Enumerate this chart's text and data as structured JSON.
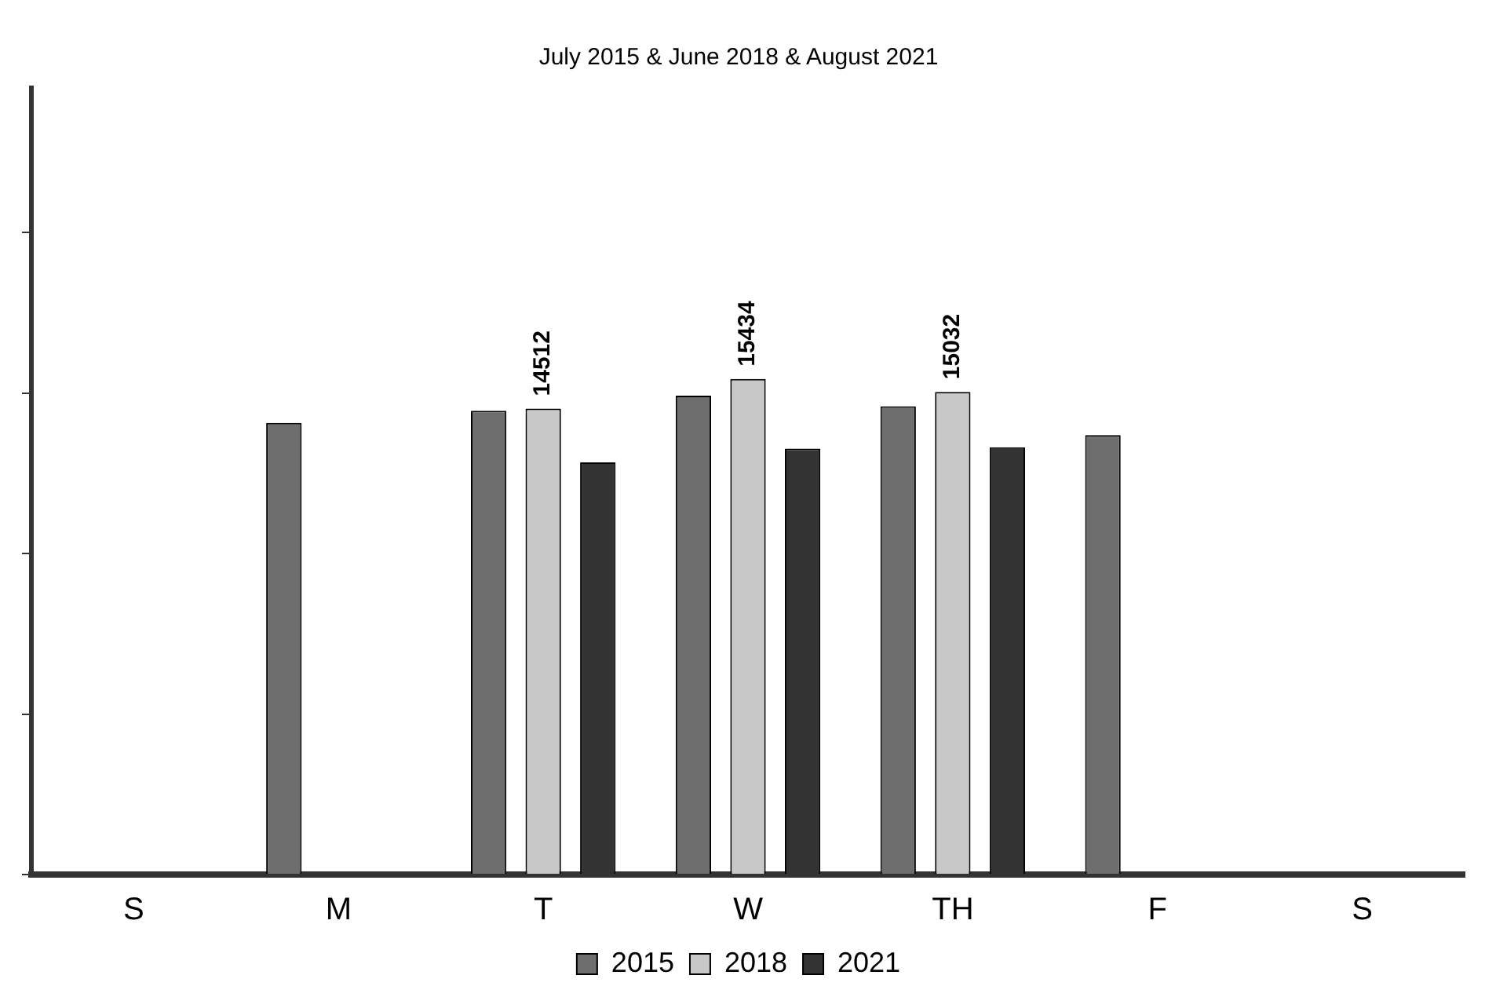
{
  "chart_data": {
    "type": "bar",
    "title": "July 2015 & June 2018 & August 2021",
    "categories": [
      "S",
      "M",
      "T",
      "W",
      "TH",
      "F",
      "S"
    ],
    "series": [
      {
        "name": "2015",
        "color": "#6e6e6e",
        "values": [
          null,
          14066,
          14443,
          14915,
          14585,
          13688,
          null
        ]
      },
      {
        "name": "2018",
        "color": "#c8c8c8",
        "values": [
          null,
          null,
          14512,
          15434,
          15032,
          null,
          null
        ],
        "value_labels": [
          null,
          null,
          "14512",
          "15434",
          "15032",
          null,
          null
        ]
      },
      {
        "name": "2021",
        "color": "#333333",
        "values": [
          null,
          null,
          12838,
          13263,
          13310,
          null,
          null
        ]
      }
    ],
    "ylim": [
      0,
      24500
    ],
    "yticks": [
      {
        "value": 0,
        "label": null
      },
      {
        "value": 5000,
        "label": null
      },
      {
        "value": 10000,
        "label": null
      },
      {
        "value": 15000,
        "label": null
      },
      {
        "value": 20000,
        "label": null
      }
    ],
    "tick_labels": "x",
    "grid": false,
    "legend": "bottom"
  }
}
